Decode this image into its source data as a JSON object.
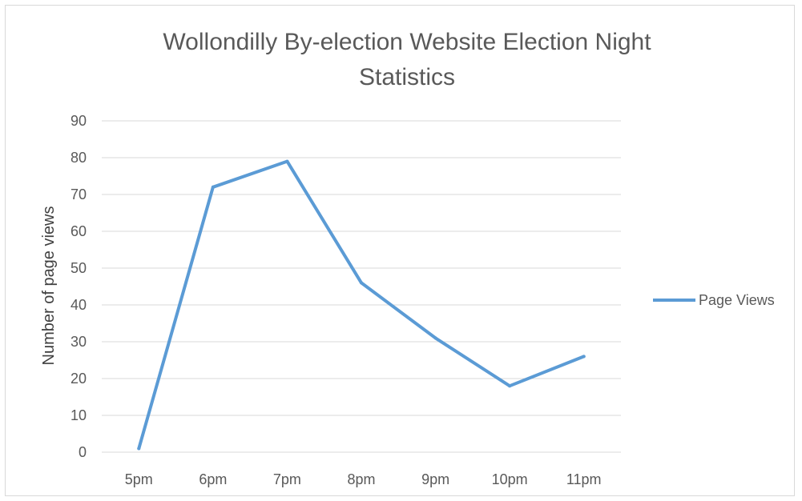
{
  "chart_data": {
    "type": "line",
    "title_lines": [
      "Wollondilly By-election Website Election Night",
      "Statistics"
    ],
    "xlabel": "",
    "ylabel": "Number of page views",
    "categories": [
      "5pm",
      "6pm",
      "7pm",
      "8pm",
      "9pm",
      "10pm",
      "11pm"
    ],
    "ylim": [
      0,
      90
    ],
    "yticks": [
      "0",
      "10",
      "20",
      "30",
      "40",
      "50",
      "60",
      "70",
      "80",
      "90"
    ],
    "grid": true,
    "legend_position": "right",
    "series": [
      {
        "name": "Page Views",
        "color": "#5b9bd5",
        "values": [
          1,
          72,
          79,
          46,
          31,
          18,
          26
        ]
      }
    ]
  }
}
